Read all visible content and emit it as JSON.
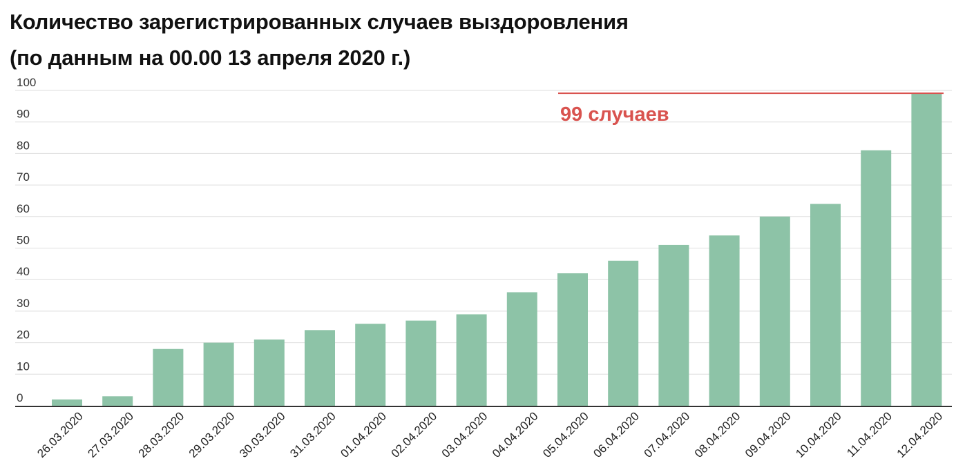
{
  "chart_data": {
    "type": "bar",
    "title": "Количество зарегистрированных случаев выздоровления",
    "subtitle": "(по данным на 00.00 13 апреля 2020 г.)",
    "xlabel": "",
    "ylabel": "",
    "ylim": [
      0,
      100
    ],
    "yticks": [
      0,
      10,
      20,
      30,
      40,
      50,
      60,
      70,
      80,
      90,
      100
    ],
    "grid": true,
    "categories": [
      "26.03.2020",
      "27.03.2020",
      "28.03.2020",
      "29.03.2020",
      "30.03.2020",
      "31.03.2020",
      "01.04.2020",
      "02.04.2020",
      "03.04.2020",
      "04.04.2020",
      "05.04.2020",
      "06.04.2020",
      "07.04.2020",
      "08.04.2020",
      "09.04.2020",
      "10.04.2020",
      "11.04.2020",
      "12.04.2020"
    ],
    "values": [
      2,
      3,
      18,
      20,
      21,
      24,
      26,
      27,
      29,
      36,
      42,
      46,
      51,
      54,
      60,
      64,
      81,
      99
    ],
    "bar_color": "#8dc3a7",
    "annotation": {
      "text": "99 случаев",
      "value": 99,
      "color": "#d9534f"
    }
  }
}
